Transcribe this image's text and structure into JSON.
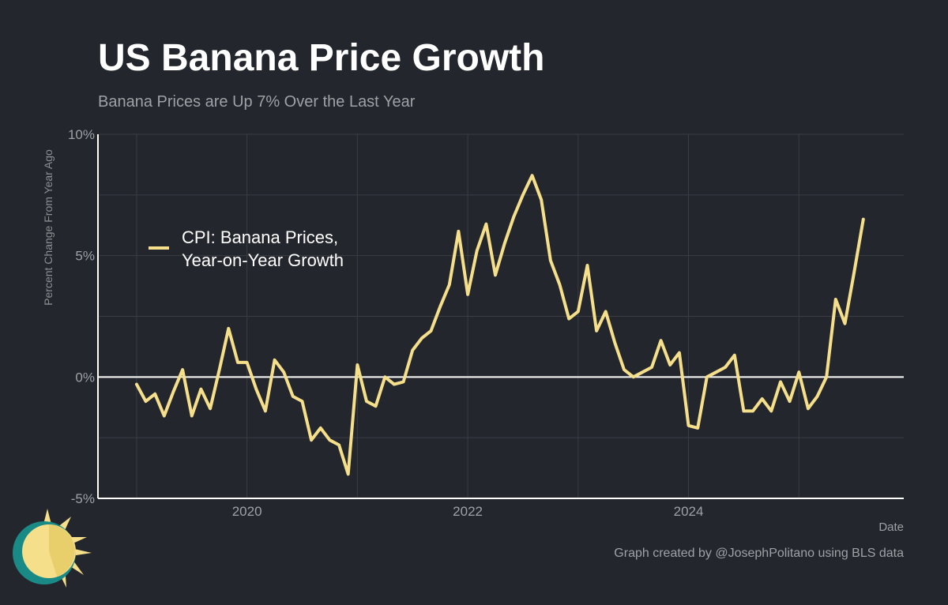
{
  "title": "US Banana Price Growth",
  "subtitle": "Banana Prices are Up 7% Over the Last Year",
  "credit": "Graph created by @JosephPolitano using BLS data",
  "colors": {
    "background": "#23262d",
    "line": "#f5df8a",
    "grid": "#3a3d44",
    "axis": "#ffffff"
  },
  "chart_data": {
    "type": "line",
    "title": "US Banana Price Growth",
    "subtitle": "Banana Prices are Up 7% Over the Last Year",
    "xlabel": "Date",
    "ylabel": "Percent Change From Year Ago",
    "xlim": [
      2018.65,
      2025.95
    ],
    "ylim": [
      -5,
      10
    ],
    "x_ticks": [
      {
        "value": 2020,
        "label": "2020"
      },
      {
        "value": 2022,
        "label": "2022"
      },
      {
        "value": 2024,
        "label": "2024"
      }
    ],
    "y_ticks": [
      {
        "value": -5,
        "label": "-5%"
      },
      {
        "value": 0,
        "label": "0%"
      },
      {
        "value": 5,
        "label": "5%"
      },
      {
        "value": 10,
        "label": "10%"
      }
    ],
    "grid": true,
    "legend_position": "upper-left",
    "series": [
      {
        "name": "CPI: Banana Prices, Year-on-Year Growth",
        "legend_lines": [
          "CPI: Banana Prices,",
          "Year-on-Year Growth"
        ],
        "start_year": 2019,
        "start_month": 1,
        "values": [
          -0.3,
          -1.0,
          -0.7,
          -1.6,
          -0.6,
          0.3,
          -1.6,
          -0.5,
          -1.3,
          0.3,
          2.0,
          0.6,
          0.6,
          -0.5,
          -1.4,
          0.7,
          0.2,
          -0.8,
          -1.0,
          -2.6,
          -2.1,
          -2.6,
          -2.8,
          -4.0,
          0.5,
          -1.0,
          -1.2,
          0.0,
          -0.3,
          -0.2,
          1.1,
          1.6,
          1.9,
          2.9,
          3.8,
          6.0,
          3.4,
          5.2,
          6.3,
          4.2,
          5.5,
          6.6,
          7.5,
          8.3,
          7.3,
          4.8,
          3.8,
          2.4,
          2.7,
          4.6,
          1.9,
          2.7,
          1.4,
          0.3,
          0.0,
          0.2,
          0.4,
          1.5,
          0.5,
          1.0,
          -2.0,
          -2.1,
          0.0,
          0.2,
          0.4,
          0.9,
          -1.4,
          -1.4,
          -0.9,
          -1.4,
          -0.2,
          -1.0,
          0.2,
          -1.3,
          -0.8,
          0.0,
          3.2,
          2.2,
          4.3,
          6.5
        ]
      }
    ]
  }
}
